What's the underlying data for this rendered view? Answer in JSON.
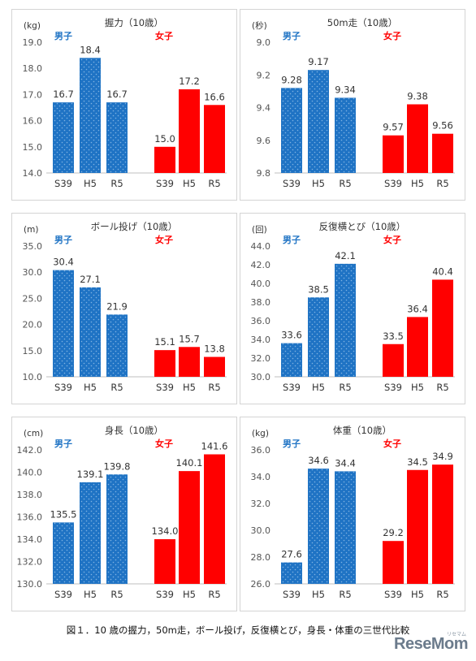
{
  "caption": "図１．10 歳の握力，50m走，ボール投げ，反復横とび，身長・体重の三世代比較",
  "logo": "ReseMom",
  "logo_sub": "リセマム",
  "colors": {
    "boys": "#1f73c4",
    "girls": "#ff0000",
    "dots": "#7fb2e3"
  },
  "chart_data": [
    {
      "type": "bar",
      "title": "握力（10歳）",
      "unit": "(kg)",
      "ylim": [
        14.0,
        19.0
      ],
      "yticks": [
        "14.0",
        "15.0",
        "16.0",
        "17.0",
        "18.0",
        "19.0"
      ],
      "reversed": false,
      "categories": [
        "S39",
        "H5",
        "R5"
      ],
      "series": [
        {
          "name": "男子",
          "values": [
            16.7,
            18.4,
            16.7
          ],
          "labels": [
            "16.7",
            "18.4",
            "16.7"
          ]
        },
        {
          "name": "女子",
          "values": [
            15.0,
            17.2,
            16.6
          ],
          "labels": [
            "15.0",
            "17.2",
            "16.6"
          ]
        }
      ]
    },
    {
      "type": "bar",
      "title": "50m走（10歳）",
      "unit": "(秒)",
      "ylim": [
        9.8,
        9.0
      ],
      "yticks": [
        "9.0",
        "9.2",
        "9.4",
        "9.6",
        "9.8"
      ],
      "reversed": true,
      "categories": [
        "S39",
        "H5",
        "R5"
      ],
      "series": [
        {
          "name": "男子",
          "values": [
            9.28,
            9.17,
            9.34
          ],
          "labels": [
            "9.28",
            "9.17",
            "9.34"
          ]
        },
        {
          "name": "女子",
          "values": [
            9.57,
            9.38,
            9.56
          ],
          "labels": [
            "9.57",
            "9.38",
            "9.56"
          ]
        }
      ]
    },
    {
      "type": "bar",
      "title": "ボール投げ（10歳）",
      "unit": "(m)",
      "ylim": [
        10.0,
        35.0
      ],
      "yticks": [
        "10.0",
        "15.0",
        "20.0",
        "25.0",
        "30.0",
        "35.0"
      ],
      "reversed": false,
      "categories": [
        "S39",
        "H5",
        "R5"
      ],
      "series": [
        {
          "name": "男子",
          "values": [
            30.4,
            27.1,
            21.9
          ],
          "labels": [
            "30.4",
            "27.1",
            "21.9"
          ]
        },
        {
          "name": "女子",
          "values": [
            15.1,
            15.7,
            13.8
          ],
          "labels": [
            "15.1",
            "15.7",
            "13.8"
          ]
        }
      ]
    },
    {
      "type": "bar",
      "title": "反復横とび（10歳）",
      "unit": "(回)",
      "ylim": [
        30.0,
        44.0
      ],
      "yticks": [
        "30.0",
        "32.0",
        "34.0",
        "36.0",
        "38.0",
        "40.0",
        "42.0",
        "44.0"
      ],
      "reversed": false,
      "categories": [
        "S39",
        "H5",
        "R5"
      ],
      "series": [
        {
          "name": "男子",
          "values": [
            33.6,
            38.5,
            42.1
          ],
          "labels": [
            "33.6",
            "38.5",
            "42.1"
          ]
        },
        {
          "name": "女子",
          "values": [
            33.5,
            36.4,
            40.4
          ],
          "labels": [
            "33.5",
            "36.4",
            "40.4"
          ]
        }
      ]
    },
    {
      "type": "bar",
      "title": "身長（10歳）",
      "unit": "(cm)",
      "ylim": [
        130.0,
        142.0
      ],
      "yticks": [
        "130.0",
        "132.0",
        "134.0",
        "136.0",
        "138.0",
        "140.0",
        "142.0"
      ],
      "reversed": false,
      "categories": [
        "S39",
        "H5",
        "R5"
      ],
      "series": [
        {
          "name": "男子",
          "values": [
            135.5,
            139.1,
            139.8
          ],
          "labels": [
            "135.5",
            "139.1",
            "139.8"
          ]
        },
        {
          "name": "女子",
          "values": [
            134.0,
            140.1,
            141.6
          ],
          "labels": [
            "134.0",
            "140.1",
            "141.6"
          ]
        }
      ]
    },
    {
      "type": "bar",
      "title": "体重（10歳）",
      "unit": "(kg)",
      "ylim": [
        26.0,
        36.0
      ],
      "yticks": [
        "26.0",
        "28.0",
        "30.0",
        "32.0",
        "34.0",
        "36.0"
      ],
      "reversed": false,
      "categories": [
        "S39",
        "H5",
        "R5"
      ],
      "series": [
        {
          "name": "男子",
          "values": [
            27.6,
            34.6,
            34.4
          ],
          "labels": [
            "27.6",
            "34.6",
            "34.4"
          ]
        },
        {
          "name": "女子",
          "values": [
            29.2,
            34.5,
            34.9
          ],
          "labels": [
            "29.2",
            "34.5",
            "34.9"
          ]
        }
      ]
    }
  ]
}
